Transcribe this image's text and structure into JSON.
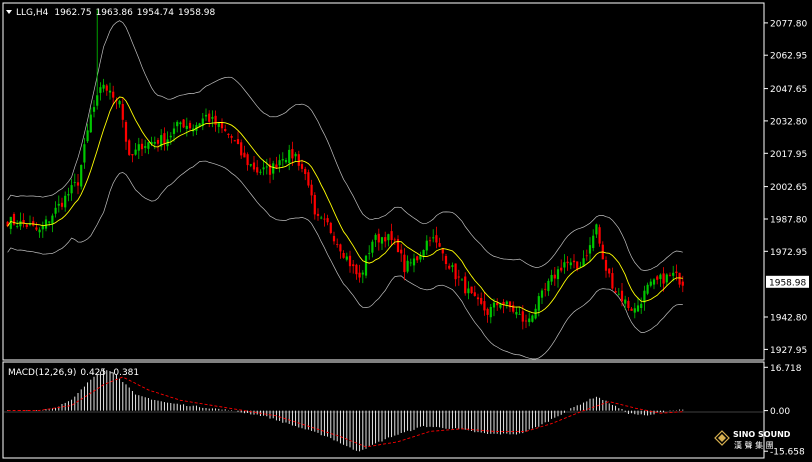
{
  "header": {
    "symbol": "LLG,H4",
    "open": "1962.75",
    "high": "1963.86",
    "low": "1954.74",
    "close": "1958.98"
  },
  "macd_header": {
    "label": "MACD(12,26,9)",
    "macd": "0.425",
    "signal": "-0.381"
  },
  "price_axis": {
    "ticks": [
      "2077.80",
      "2062.95",
      "2047.65",
      "2032.80",
      "2017.95",
      "2002.65",
      "1987.80",
      "1972.95",
      "1958.98",
      "1942.80",
      "1927.95"
    ],
    "current_price": "1958.98"
  },
  "macd_axis": {
    "ticks": [
      "16.718",
      "0.00",
      "-15.658"
    ]
  },
  "watermark": {
    "line1": "SINO SOUND",
    "line2": "漢 聲 集 團"
  },
  "colors": {
    "background": "#000000",
    "bull": "#00c800",
    "bear": "#ff0000",
    "ma": "#ffff00",
    "bands": "#c0c0c0",
    "axis_text": "#ffffff",
    "histogram": "#ffffff",
    "signal": "#ff0000"
  },
  "chart_data": [
    {
      "type": "candlestick",
      "title": "LLG,H4",
      "ylim": [
        1924,
        2086
      ],
      "overlays": [
        "bollinger-bands",
        "moving-average"
      ],
      "grid": false,
      "close_path": [
        [
          0,
          1987
        ],
        [
          6,
          1985
        ],
        [
          10,
          1982
        ],
        [
          14,
          1990
        ],
        [
          22,
          2005
        ],
        [
          26,
          2035
        ],
        [
          30,
          2050
        ],
        [
          32,
          2045
        ],
        [
          35,
          2043
        ],
        [
          38,
          2015
        ],
        [
          42,
          2022
        ],
        [
          50,
          2025
        ],
        [
          54,
          2032
        ],
        [
          58,
          2030
        ],
        [
          62,
          2035
        ],
        [
          66,
          2030
        ],
        [
          70,
          2025
        ],
        [
          74,
          2015
        ],
        [
          78,
          2010
        ],
        [
          82,
          2010
        ],
        [
          86,
          2017
        ],
        [
          90,
          2017
        ],
        [
          94,
          2005
        ],
        [
          96,
          1988
        ],
        [
          100,
          1985
        ],
        [
          104,
          1975
        ],
        [
          108,
          1965
        ],
        [
          110,
          1960
        ],
        [
          114,
          1978
        ],
        [
          118,
          1980
        ],
        [
          122,
          1975
        ],
        [
          124,
          1965
        ],
        [
          128,
          1970
        ],
        [
          132,
          1980
        ],
        [
          136,
          1972
        ],
        [
          140,
          1962
        ],
        [
          146,
          1950
        ],
        [
          150,
          1945
        ],
        [
          154,
          1950
        ],
        [
          158,
          1946
        ],
        [
          162,
          1940
        ],
        [
          166,
          1950
        ],
        [
          170,
          1960
        ],
        [
          174,
          1968
        ],
        [
          178,
          1965
        ],
        [
          182,
          1975
        ],
        [
          184,
          1985
        ],
        [
          186,
          1968
        ],
        [
          190,
          1955
        ],
        [
          194,
          1948
        ],
        [
          196,
          1946
        ],
        [
          200,
          1956
        ],
        [
          204,
          1960
        ],
        [
          208,
          1962
        ],
        [
          211,
          1959
        ]
      ],
      "high_spike": [
        28,
        2084
      ],
      "band_width": [
        [
          0,
          12
        ],
        [
          20,
          14
        ],
        [
          26,
          30
        ],
        [
          30,
          38
        ],
        [
          40,
          32
        ],
        [
          50,
          20
        ],
        [
          60,
          16
        ],
        [
          70,
          22
        ],
        [
          80,
          22
        ],
        [
          90,
          26
        ],
        [
          100,
          26
        ],
        [
          110,
          22
        ],
        [
          120,
          16
        ],
        [
          130,
          15
        ],
        [
          140,
          18
        ],
        [
          150,
          20
        ],
        [
          160,
          22
        ],
        [
          170,
          20
        ],
        [
          180,
          18
        ],
        [
          190,
          16
        ],
        [
          200,
          14
        ],
        [
          211,
          12
        ]
      ]
    },
    {
      "type": "macd",
      "title": "MACD(12,26,9)",
      "ylim": [
        -17.5,
        18
      ],
      "macd_path": [
        [
          0,
          0
        ],
        [
          10,
          0.3
        ],
        [
          14,
          0.8
        ],
        [
          20,
          4
        ],
        [
          26,
          12
        ],
        [
          30,
          16.5
        ],
        [
          34,
          14
        ],
        [
          40,
          6
        ],
        [
          50,
          3
        ],
        [
          60,
          1.5
        ],
        [
          70,
          0
        ],
        [
          80,
          -2
        ],
        [
          90,
          -6
        ],
        [
          100,
          -10
        ],
        [
          108,
          -15
        ],
        [
          110,
          -15.5
        ],
        [
          120,
          -10
        ],
        [
          130,
          -6
        ],
        [
          140,
          -7
        ],
        [
          150,
          -9
        ],
        [
          160,
          -9
        ],
        [
          166,
          -6
        ],
        [
          172,
          -2
        ],
        [
          178,
          2
        ],
        [
          184,
          5.5
        ],
        [
          188,
          3
        ],
        [
          194,
          -1
        ],
        [
          200,
          -2
        ],
        [
          206,
          0
        ],
        [
          211,
          0.4
        ]
      ],
      "signal_path": [
        [
          0,
          0
        ],
        [
          10,
          0.1
        ],
        [
          20,
          2
        ],
        [
          30,
          10
        ],
        [
          36,
          13
        ],
        [
          44,
          8
        ],
        [
          54,
          4
        ],
        [
          64,
          2
        ],
        [
          74,
          0
        ],
        [
          84,
          -2
        ],
        [
          94,
          -6
        ],
        [
          104,
          -10
        ],
        [
          112,
          -14
        ],
        [
          122,
          -12
        ],
        [
          132,
          -8
        ],
        [
          142,
          -7
        ],
        [
          152,
          -8
        ],
        [
          162,
          -8
        ],
        [
          170,
          -5
        ],
        [
          180,
          0
        ],
        [
          188,
          3.5
        ],
        [
          196,
          1
        ],
        [
          204,
          -1
        ],
        [
          211,
          -0.4
        ]
      ]
    }
  ]
}
